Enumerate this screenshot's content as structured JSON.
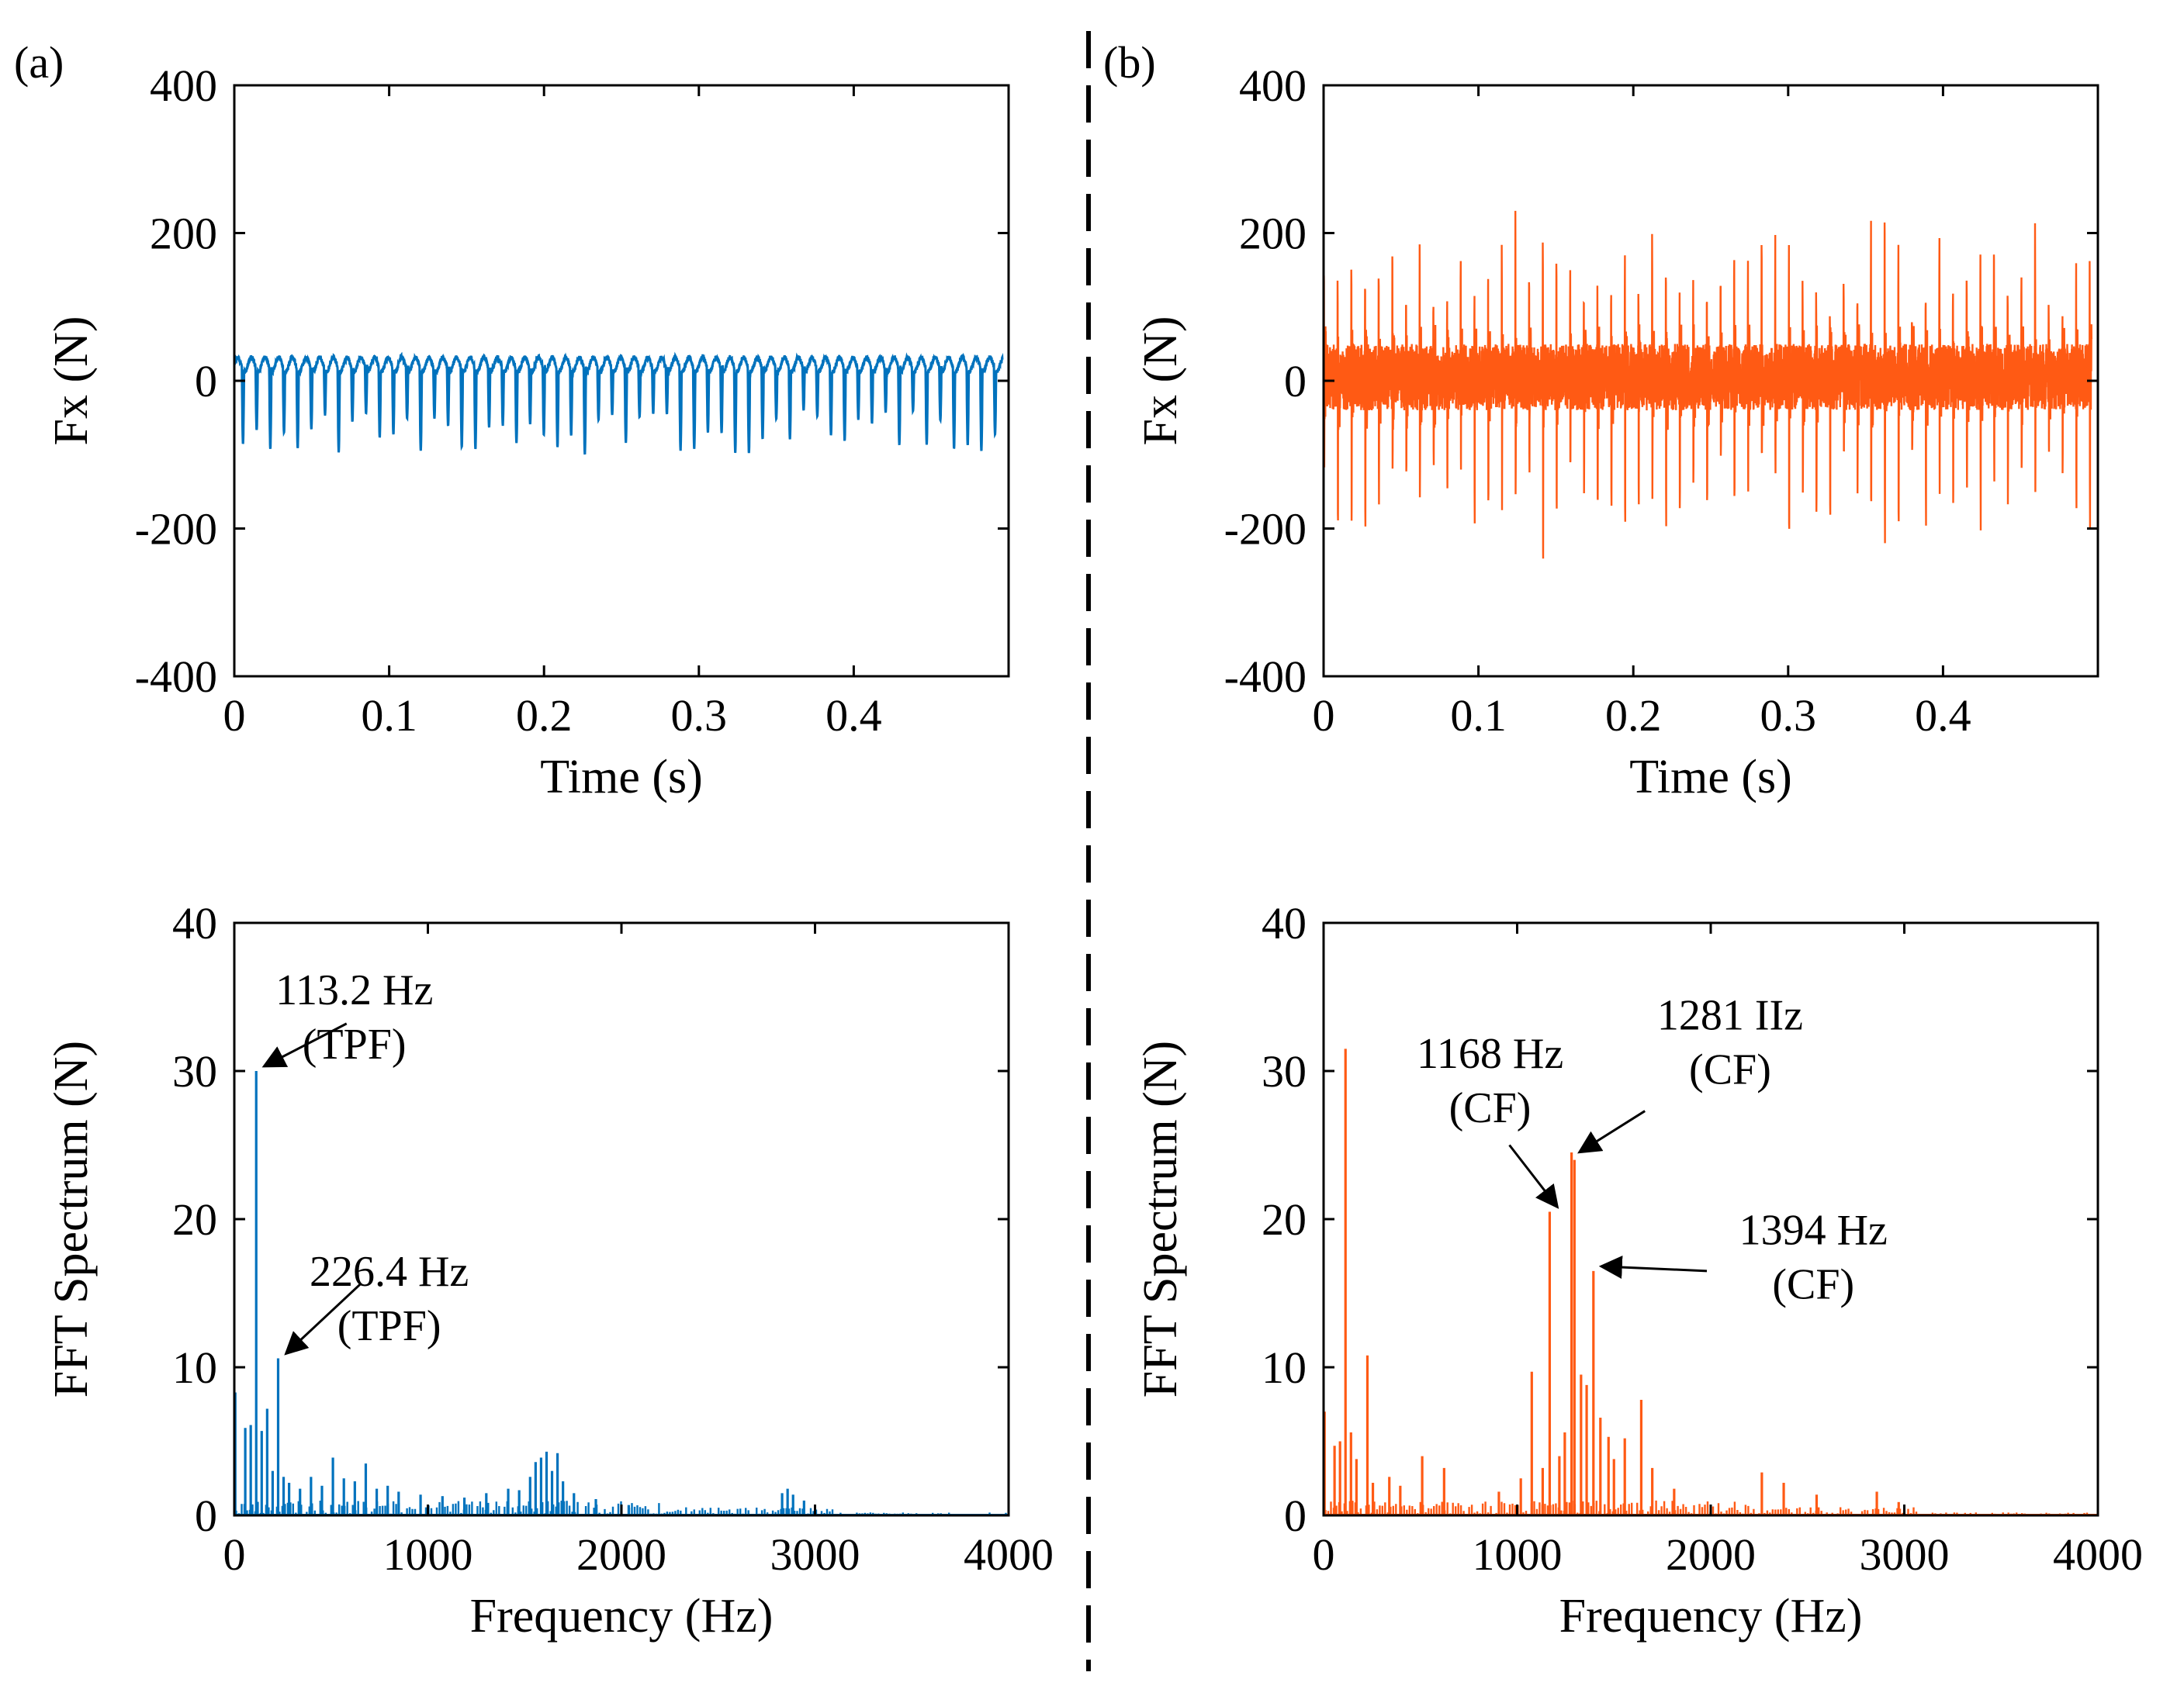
{
  "colors": {
    "blue": "#0072BD",
    "orange": "#FF5A14",
    "axis": "#000000"
  },
  "panel_labels": {
    "a": "(a)",
    "b": "(b)"
  },
  "chart_data": [
    {
      "id": "a-time",
      "type": "line",
      "series_name": "Fx (a)",
      "color_key": "blue",
      "xlabel": "Time (s)",
      "ylabel": "Fx (N)",
      "xlim": [
        0,
        0.5
      ],
      "ylim": [
        -400,
        400
      ],
      "xticks": [
        0,
        0.1,
        0.2,
        0.3,
        0.4
      ],
      "xtick_labels": [
        "0",
        "0.1",
        "0.2",
        "0.3",
        "0.4"
      ],
      "yticks": [
        -400,
        -200,
        0,
        200,
        400
      ],
      "ytick_labels": [
        "-400",
        "-200",
        "0",
        "200",
        "400"
      ],
      "signal": {
        "kind": "periodic",
        "period_s": 0.00883,
        "baseline": 22,
        "upper_peak": 38,
        "dip_min": -100,
        "dip_max": -40,
        "noise": 6
      },
      "annotations": []
    },
    {
      "id": "b-time",
      "type": "line",
      "series_name": "Fx (b)",
      "color_key": "orange",
      "xlabel": "Time (s)",
      "ylabel": "Fx (N)",
      "xlim": [
        0,
        0.5
      ],
      "ylim": [
        -400,
        400
      ],
      "xticks": [
        0,
        0.1,
        0.2,
        0.3,
        0.4
      ],
      "xtick_labels": [
        "0",
        "0.1",
        "0.2",
        "0.3",
        "0.4"
      ],
      "yticks": [
        -400,
        -200,
        0,
        200,
        400
      ],
      "ytick_labels": [
        "-400",
        "-200",
        "0",
        "200",
        "400"
      ],
      "signal": {
        "kind": "spiky",
        "period_s": 0.00883,
        "baseline": 5,
        "band": 45,
        "pos_min": 120,
        "pos_max": 240,
        "neg_min": -245,
        "neg_max": -150
      },
      "annotations": []
    },
    {
      "id": "a-fft",
      "type": "bar",
      "series_name": "FFT (a)",
      "color_key": "blue",
      "xlabel": "Frequency (Hz)",
      "ylabel": "FFT Spectrum (N)",
      "xlim": [
        0,
        4000
      ],
      "ylim": [
        0,
        40
      ],
      "xticks": [
        0,
        1000,
        2000,
        3000,
        4000
      ],
      "xtick_labels": [
        "0",
        "1000",
        "2000",
        "3000",
        "4000"
      ],
      "yticks": [
        0,
        10,
        20,
        30,
        40
      ],
      "ytick_labels": [
        "0",
        "10",
        "20",
        "30",
        "40"
      ],
      "peaks": [
        {
          "f": 5,
          "v": 8.3
        },
        {
          "f": 56.6,
          "v": 5.9
        },
        {
          "f": 84.9,
          "v": 6.1
        },
        {
          "f": 113.2,
          "v": 30.0
        },
        {
          "f": 141.5,
          "v": 5.7
        },
        {
          "f": 169.8,
          "v": 7.2
        },
        {
          "f": 198.1,
          "v": 3.0
        },
        {
          "f": 226.4,
          "v": 10.6
        },
        {
          "f": 254.7,
          "v": 2.6
        },
        {
          "f": 283,
          "v": 2.2
        },
        {
          "f": 339.6,
          "v": 1.8
        },
        {
          "f": 396.2,
          "v": 2.6
        },
        {
          "f": 452.8,
          "v": 2.0
        },
        {
          "f": 509.4,
          "v": 3.9
        },
        {
          "f": 566,
          "v": 2.5
        },
        {
          "f": 622.6,
          "v": 2.3
        },
        {
          "f": 679.2,
          "v": 3.5
        },
        {
          "f": 735.8,
          "v": 1.8
        },
        {
          "f": 792.4,
          "v": 2.0
        },
        {
          "f": 849,
          "v": 1.6
        },
        {
          "f": 962.2,
          "v": 1.4
        },
        {
          "f": 1075.4,
          "v": 1.3
        },
        {
          "f": 1188.6,
          "v": 1.2
        },
        {
          "f": 1301.8,
          "v": 1.5
        },
        {
          "f": 1415,
          "v": 1.8
        },
        {
          "f": 1471.6,
          "v": 1.7
        },
        {
          "f": 1528.2,
          "v": 2.6
        },
        {
          "f": 1556.5,
          "v": 3.6
        },
        {
          "f": 1584.8,
          "v": 3.9
        },
        {
          "f": 1613.1,
          "v": 4.3
        },
        {
          "f": 1641.4,
          "v": 3.0
        },
        {
          "f": 1669.7,
          "v": 4.2
        },
        {
          "f": 1698,
          "v": 2.3
        },
        {
          "f": 1754.6,
          "v": 1.5
        },
        {
          "f": 1867.8,
          "v": 1.1
        },
        {
          "f": 2037.6,
          "v": 0.7
        },
        {
          "f": 2830,
          "v": 1.5
        },
        {
          "f": 2858.3,
          "v": 1.8
        },
        {
          "f": 2886.6,
          "v": 1.4
        },
        {
          "f": 2943.2,
          "v": 1.0
        }
      ],
      "floor": {
        "max": 1.0,
        "density_step_hz": 14
      },
      "annotations": [
        {
          "lines": [
            "113.2 Hz",
            "(TPF)"
          ],
          "target": [
            113.2,
            30.0
          ],
          "text_at": [
            620,
            34.5
          ],
          "tail": [
            580,
            33.2
          ]
        },
        {
          "lines": [
            "226.4 Hz",
            "(TPF)"
          ],
          "target": [
            226.4,
            10.6
          ],
          "text_at": [
            800,
            15.5
          ],
          "tail": [
            650,
            15.6
          ]
        }
      ]
    },
    {
      "id": "b-fft",
      "type": "bar",
      "series_name": "FFT (b)",
      "color_key": "orange",
      "xlabel": "Frequency (Hz)",
      "ylabel": "FFT Spectrum (N)",
      "xlim": [
        0,
        4000
      ],
      "ylim": [
        0,
        40
      ],
      "xticks": [
        0,
        1000,
        2000,
        3000,
        4000
      ],
      "xtick_labels": [
        "0",
        "1000",
        "2000",
        "3000",
        "4000"
      ],
      "yticks": [
        0,
        10,
        20,
        30,
        40
      ],
      "ytick_labels": [
        "0",
        "10",
        "20",
        "30",
        "40"
      ],
      "peaks": [
        {
          "f": 5,
          "v": 7.0
        },
        {
          "f": 56.6,
          "v": 4.7
        },
        {
          "f": 84.9,
          "v": 5.0
        },
        {
          "f": 113.2,
          "v": 31.5
        },
        {
          "f": 141.5,
          "v": 5.6
        },
        {
          "f": 169.8,
          "v": 3.8
        },
        {
          "f": 226.4,
          "v": 10.8
        },
        {
          "f": 254.7,
          "v": 2.2
        },
        {
          "f": 339.6,
          "v": 2.6
        },
        {
          "f": 396.2,
          "v": 2.0
        },
        {
          "f": 509.4,
          "v": 4.0
        },
        {
          "f": 622.6,
          "v": 3.2
        },
        {
          "f": 905.6,
          "v": 1.6
        },
        {
          "f": 1018.8,
          "v": 2.5
        },
        {
          "f": 1075.4,
          "v": 9.7
        },
        {
          "f": 1131.9,
          "v": 3.2
        },
        {
          "f": 1168,
          "v": 20.5
        },
        {
          "f": 1218,
          "v": 4.0
        },
        {
          "f": 1246,
          "v": 5.6
        },
        {
          "f": 1281,
          "v": 24.5
        },
        {
          "f": 1296,
          "v": 24.0
        },
        {
          "f": 1330,
          "v": 9.5
        },
        {
          "f": 1359,
          "v": 8.8
        },
        {
          "f": 1394,
          "v": 16.5
        },
        {
          "f": 1430,
          "v": 6.6
        },
        {
          "f": 1472,
          "v": 5.3
        },
        {
          "f": 1500,
          "v": 3.8
        },
        {
          "f": 1556,
          "v": 5.2
        },
        {
          "f": 1641,
          "v": 7.8
        },
        {
          "f": 1698,
          "v": 3.2
        },
        {
          "f": 1811,
          "v": 1.8
        },
        {
          "f": 2264,
          "v": 2.9
        },
        {
          "f": 2377,
          "v": 2.2
        },
        {
          "f": 2547,
          "v": 1.4
        },
        {
          "f": 2858,
          "v": 1.6
        },
        {
          "f": 2971,
          "v": 0.9
        }
      ],
      "floor": {
        "max": 1.0,
        "density_step_hz": 14
      },
      "annotations": [
        {
          "lines": [
            "1168 Hz",
            "(CF)"
          ],
          "target": [
            1168,
            20.5
          ],
          "text_at": [
            860,
            30.2
          ],
          "tail": [
            960,
            25.0
          ]
        },
        {
          "lines": [
            "1281 IIz",
            "(CF)"
          ],
          "target": [
            1281,
            24.2
          ],
          "text_at": [
            2100,
            32.8
          ],
          "tail": [
            1660,
            27.3
          ]
        },
        {
          "lines": [
            "1394 Hz",
            "(CF)"
          ],
          "target": [
            1394,
            16.5
          ],
          "text_at": [
            2530,
            18.3
          ],
          "tail": [
            1980,
            16.5
          ]
        }
      ]
    }
  ]
}
